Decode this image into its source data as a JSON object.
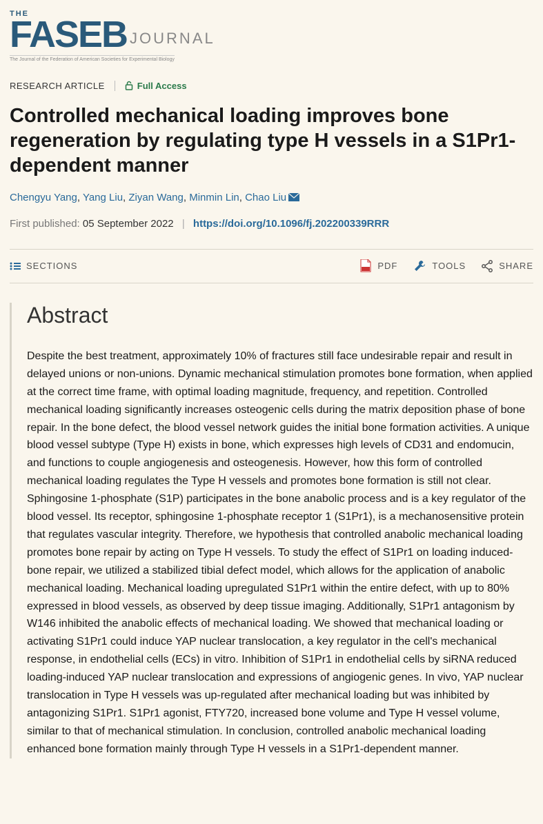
{
  "journal": {
    "the": "THE",
    "name": "FASEB",
    "sub": "JOURNAL",
    "tagline": "The Journal of the Federation of American Societies for Experimental Biology"
  },
  "meta": {
    "article_type": "RESEARCH ARTICLE",
    "access": "Full Access"
  },
  "title": "Controlled mechanical loading improves bone regeneration by regulating type H vessels in a S1Pr1-dependent manner",
  "authors": [
    "Chengyu Yang",
    "Yang Liu",
    "Ziyan Wang",
    "Minmin Lin",
    "Chao Liu"
  ],
  "corresponding_index": 4,
  "published": {
    "label": "First published:",
    "date": "05 September 2022",
    "doi": "https://doi.org/10.1096/fj.202200339RRR"
  },
  "toolbar": {
    "sections": "SECTIONS",
    "pdf": "PDF",
    "tools": "TOOLS",
    "share": "SHARE"
  },
  "abstract": {
    "heading": "Abstract",
    "text": "Despite the best treatment, approximately 10% of fractures still face undesirable repair and result in delayed unions or non-unions. Dynamic mechanical stimulation promotes bone formation, when applied at the correct time frame, with optimal loading magnitude, frequency, and repetition. Controlled mechanical loading significantly increases osteogenic cells during the matrix deposition phase of bone repair. In the bone defect, the blood vessel network guides the initial bone formation activities. A unique blood vessel subtype (Type H) exists in bone, which expresses high levels of CD31 and endomucin, and functions to couple angiogenesis and osteogenesis. However, how this form of controlled mechanical loading regulates the Type H vessels and promotes bone formation is still not clear. Sphingosine 1-phosphate (S1P) participates in the bone anabolic process and is a key regulator of the blood vessel. Its receptor, sphingosine 1-phosphate receptor 1 (S1Pr1), is a mechanosensitive protein that regulates vascular integrity. Therefore, we hypothesis that controlled anabolic mechanical loading promotes bone repair by acting on Type H vessels. To study the effect of S1Pr1 on loading induced-bone repair, we utilized a stabilized tibial defect model, which allows for the application of anabolic mechanical loading. Mechanical loading upregulated S1Pr1 within the entire defect, with up to 80% expressed in blood vessels, as observed by deep tissue imaging. Additionally, S1Pr1 antagonism by W146 inhibited the anabolic effects of mechanical loading. We showed that mechanical loading or activating S1Pr1 could induce YAP nuclear translocation, a key regulator in the cell's mechanical response, in endothelial cells (ECs) in vitro. Inhibition of S1Pr1 in endothelial cells by siRNA reduced loading-induced YAP nuclear translocation and expressions of angiogenic genes. In vivo, YAP nuclear translocation in Type H vessels was up-regulated after mechanical loading but was inhibited by antagonizing S1Pr1. S1Pr1 agonist, FTY720, increased bone volume and Type H vessel volume, similar to that of mechanical stimulation. In conclusion, controlled anabolic mechanical loading enhanced bone formation mainly through Type H vessels in a S1Pr1-dependent manner."
  }
}
